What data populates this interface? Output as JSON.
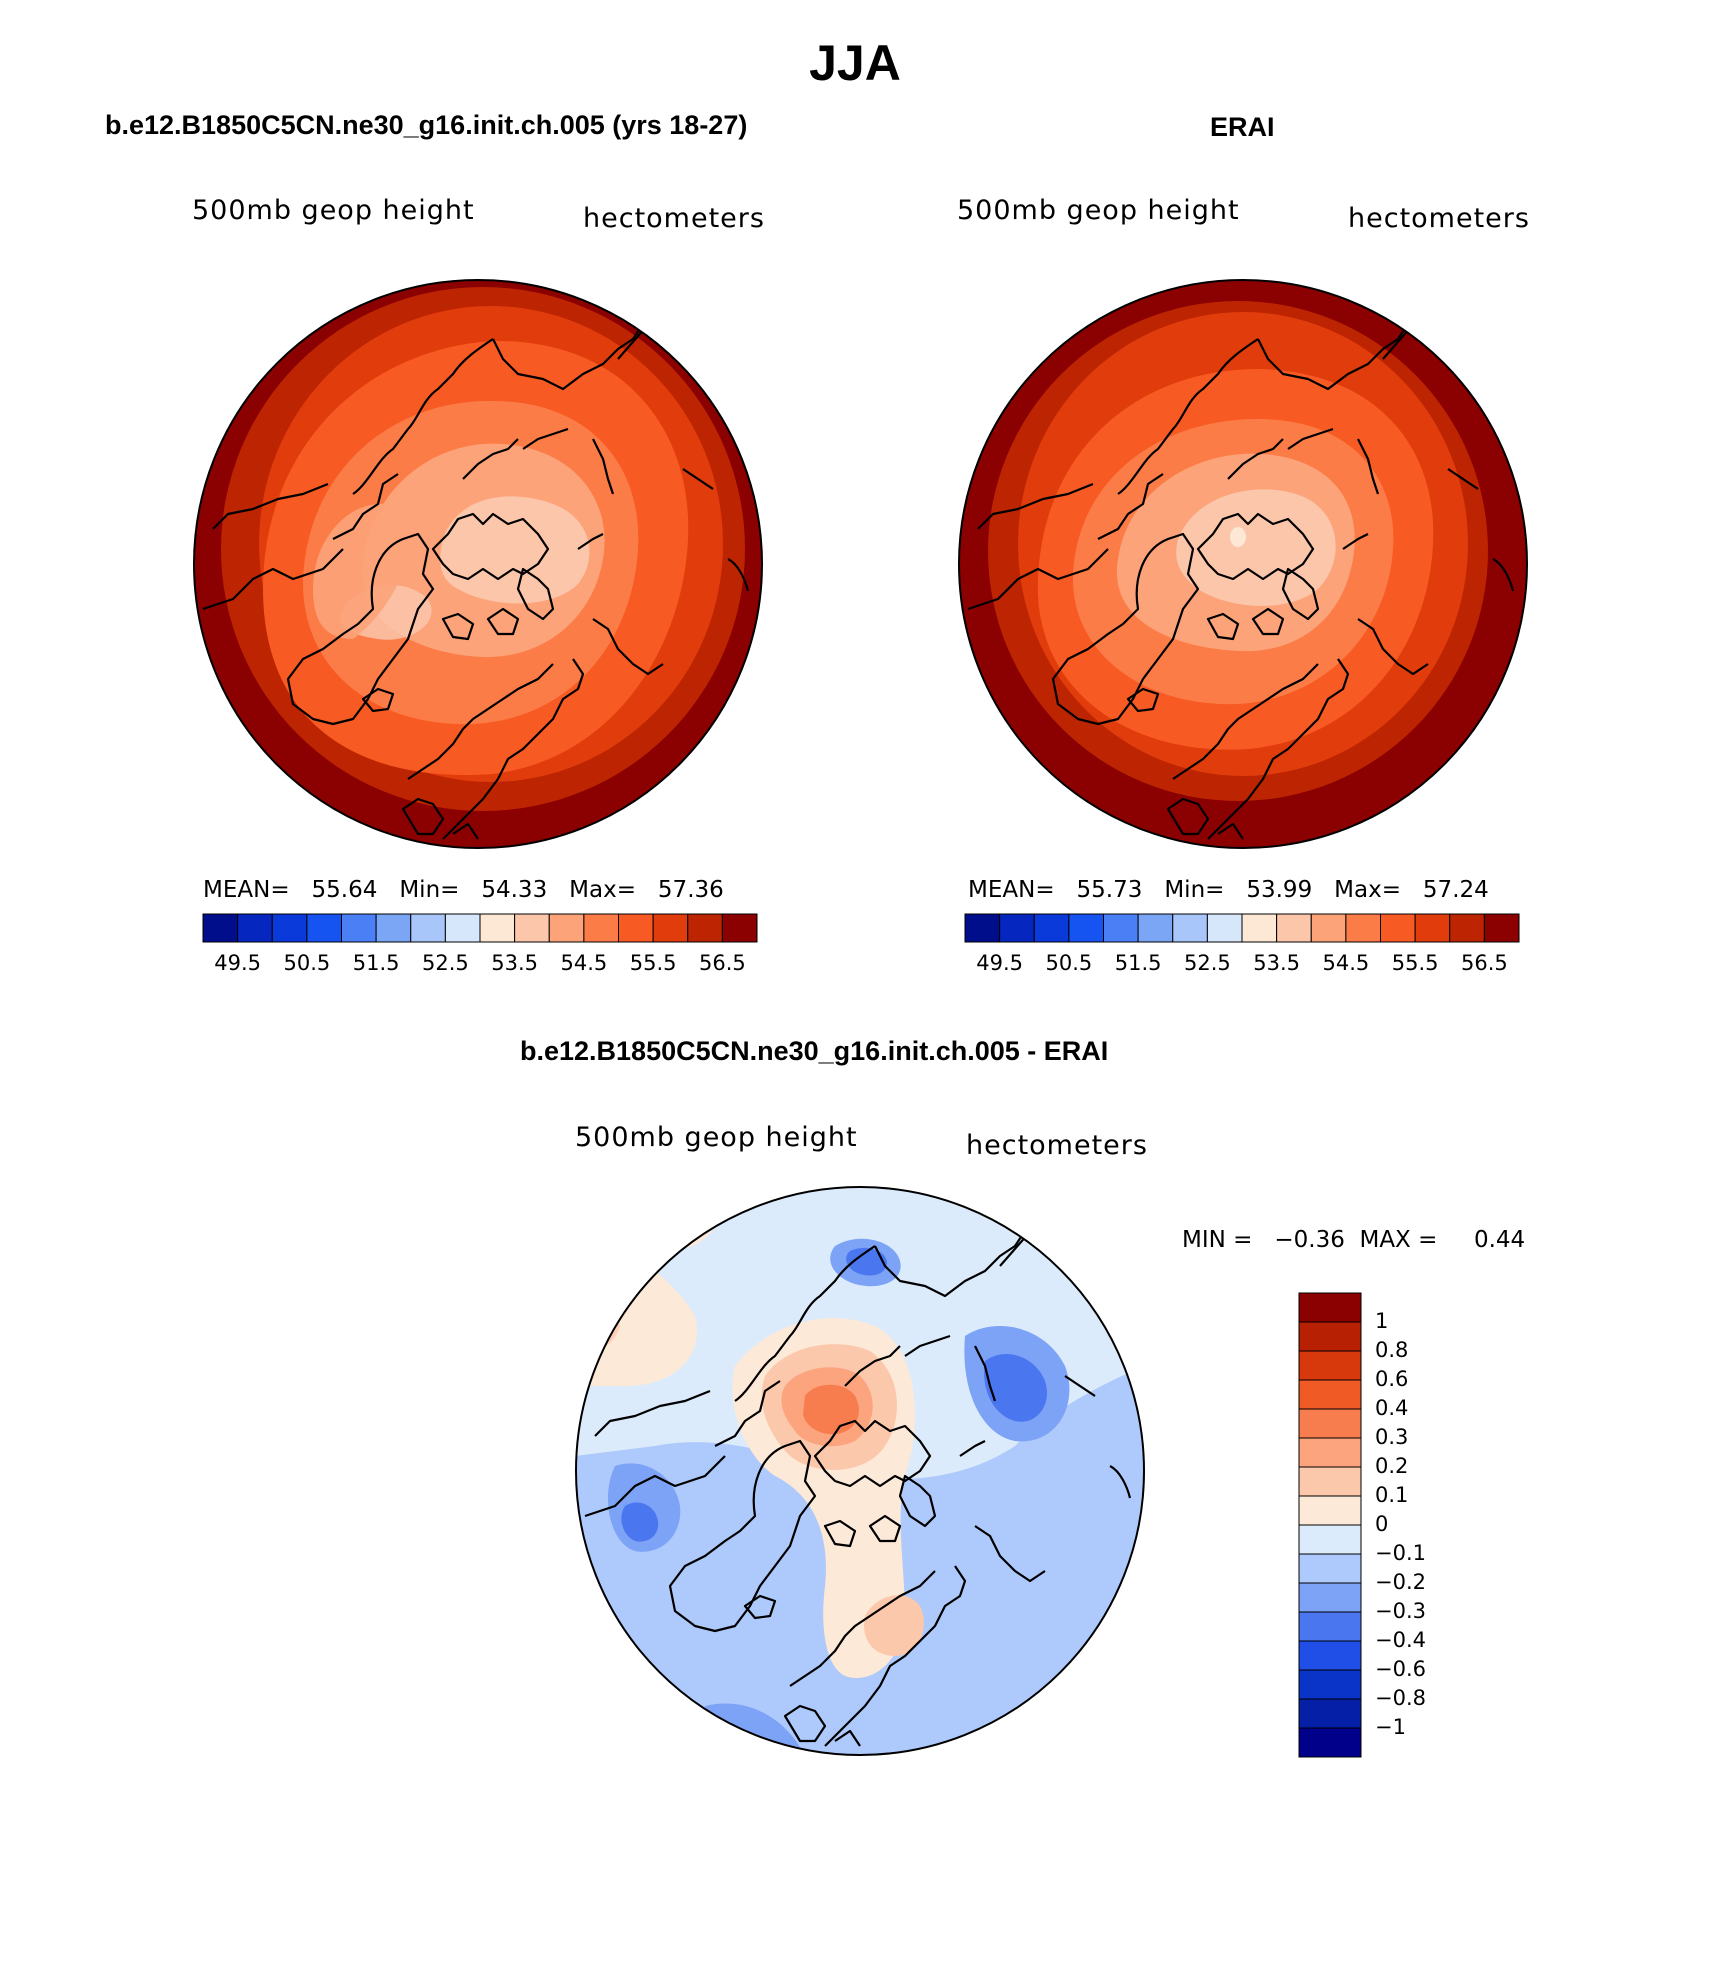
{
  "title": "JJA",
  "colors": {
    "seq": [
      "#000e8c",
      "#0527bf",
      "#0a3ad9",
      "#1654f1",
      "#4a7ff5",
      "#7ba6f6",
      "#a9c6fa",
      "#d6e6fb",
      "#fde8d6",
      "#fcc6ab",
      "#fca37a",
      "#fc7c47",
      "#f85a23",
      "#e13c0b",
      "#bd2402",
      "#8b0000"
    ],
    "diff": [
      "#00008b",
      "#0520a6",
      "#0a34c7",
      "#1f4fe6",
      "#4a76f0",
      "#7da3f6",
      "#aec9fb",
      "#dcebfb",
      "#fde9d8",
      "#fcc8ac",
      "#fba47e",
      "#f87d4e",
      "#f05a24",
      "#d8390c",
      "#b82003",
      "#8b0000"
    ]
  },
  "chart_data": [
    {
      "type": "heatmap",
      "name": "model",
      "title": "b.e12.B1850C5CN.ne30_g16.init.ch.005 (yrs 18-27)",
      "left_label": "500mb geop height",
      "right_label": "hectometers",
      "projection": "north polar stereographic",
      "stats": {
        "mean_label": "MEAN=",
        "mean": "55.64",
        "min_label": "Min=",
        "min": "54.33",
        "max_label": "Max=",
        "max": "57.36"
      },
      "colorbar_ticks": [
        "49.5",
        "50.5",
        "51.5",
        "52.5",
        "53.5",
        "54.5",
        "55.5",
        "56.5"
      ]
    },
    {
      "type": "heatmap",
      "name": "obs",
      "title": "ERAI",
      "left_label": "500mb geop height",
      "right_label": "hectometers",
      "projection": "north polar stereographic",
      "stats": {
        "mean_label": "MEAN=",
        "mean": "55.73",
        "min_label": "Min=",
        "min": "53.99",
        "max_label": "Max=",
        "max": "57.24"
      },
      "colorbar_ticks": [
        "49.5",
        "50.5",
        "51.5",
        "52.5",
        "53.5",
        "54.5",
        "55.5",
        "56.5"
      ]
    },
    {
      "type": "heatmap",
      "name": "difference",
      "title": "b.e12.B1850C5CN.ne30_g16.init.ch.005 - ERAI",
      "left_label": "500mb geop height",
      "right_label": "hectometers",
      "projection": "north polar stereographic",
      "stats": {
        "min_label": "MIN =",
        "min": "−0.36",
        "max_label": "MAX =",
        "max": "0.44"
      },
      "colorbar_levels": [
        "1",
        "0.8",
        "0.6",
        "0.4",
        "0.3",
        "0.2",
        "0.1",
        "0",
        "−0.1",
        "−0.2",
        "−0.3",
        "−0.4",
        "−0.6",
        "−0.8",
        "−1"
      ]
    }
  ]
}
